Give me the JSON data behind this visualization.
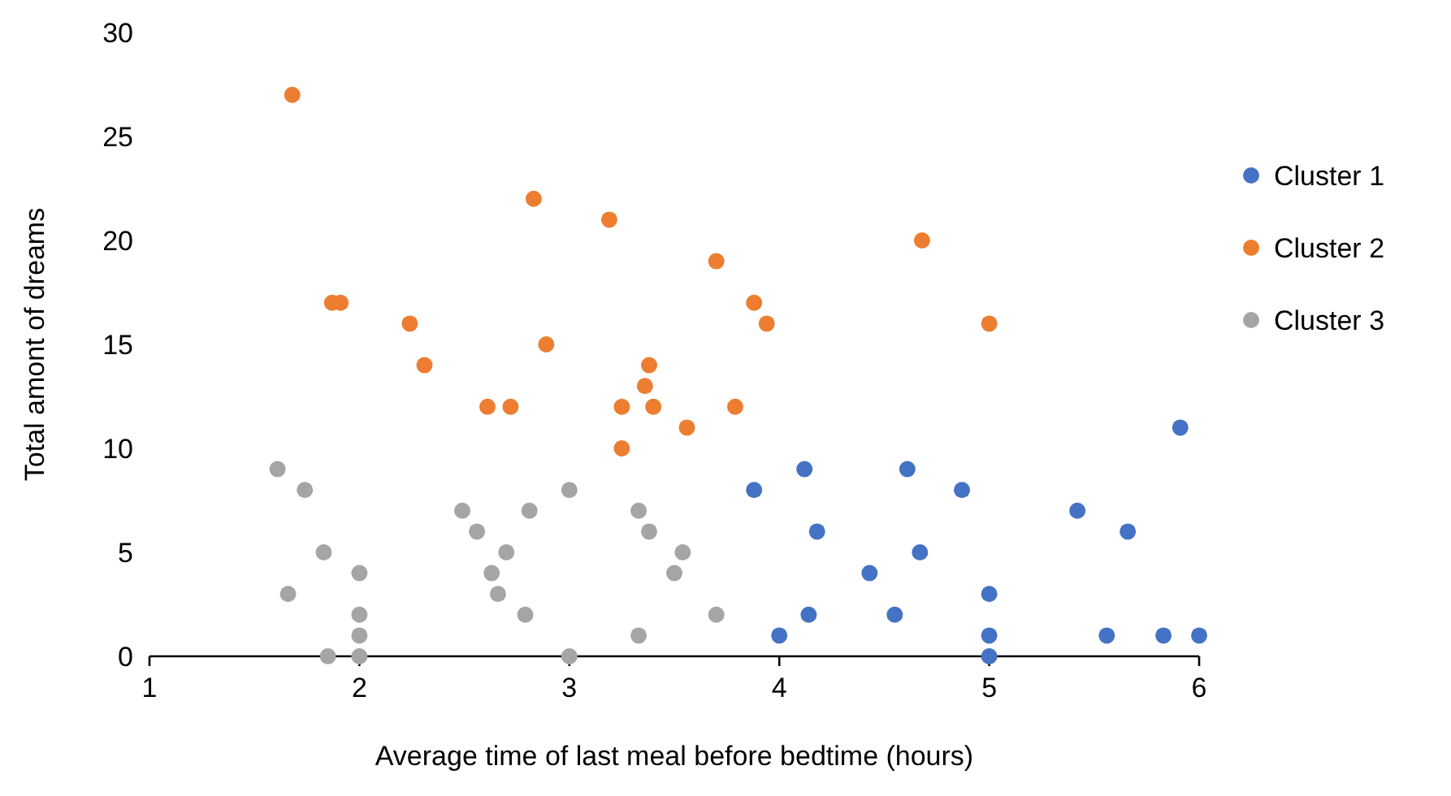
{
  "chart_data": {
    "type": "scatter",
    "xlabel": "Average time of last meal before bedtime (hours)",
    "ylabel": "Total amont of dreams",
    "xlim": [
      1,
      6
    ],
    "xticks": [
      1,
      2,
      3,
      4,
      5,
      6
    ],
    "ylim": [
      0,
      30
    ],
    "yticks": [
      0,
      5,
      10,
      15,
      20,
      25,
      30
    ],
    "grid": false,
    "legend": "right",
    "marker": "circle",
    "series": [
      {
        "name": "Cluster 1",
        "color": "#4472c4",
        "x": [
          3.88,
          4.12,
          4.18,
          4.0,
          4.14,
          4.43,
          4.55,
          4.61,
          4.67,
          4.87,
          5.0,
          5.0,
          5.0,
          5.42,
          5.66,
          5.56,
          5.83,
          6.0,
          5.91
        ],
        "values": [
          8,
          9,
          6,
          1,
          2,
          4,
          2,
          9,
          5,
          8,
          3,
          1,
          0,
          7,
          6,
          1,
          1,
          1,
          11
        ]
      },
      {
        "name": "Cluster 2",
        "color": "#ed7d31",
        "x": [
          1.68,
          2.83,
          3.19,
          3.7,
          1.87,
          1.91,
          2.24,
          2.89,
          4.68,
          3.88,
          3.94,
          5.0,
          3.38,
          3.36,
          3.25,
          3.4,
          3.79,
          3.56,
          3.25,
          2.31,
          2.61,
          2.72
        ],
        "values": [
          27,
          22,
          21,
          19,
          17,
          17,
          16,
          15,
          20,
          17,
          16,
          16,
          14,
          13,
          12,
          12,
          12,
          11,
          10,
          14,
          12,
          12
        ]
      },
      {
        "name": "Cluster 3",
        "color": "#a5a5a5",
        "x": [
          1.61,
          1.74,
          1.83,
          1.66,
          1.85,
          2.0,
          2.0,
          2.0,
          2.0,
          2.49,
          2.56,
          2.7,
          2.63,
          2.66,
          2.79,
          2.81,
          3.0,
          3.0,
          3.33,
          3.38,
          3.54,
          3.5,
          3.33,
          3.7
        ],
        "values": [
          9,
          8,
          5,
          3,
          0,
          4,
          2,
          1,
          0,
          7,
          6,
          5,
          4,
          3,
          2,
          7,
          8,
          0,
          7,
          6,
          5,
          4,
          1,
          2
        ]
      }
    ]
  }
}
